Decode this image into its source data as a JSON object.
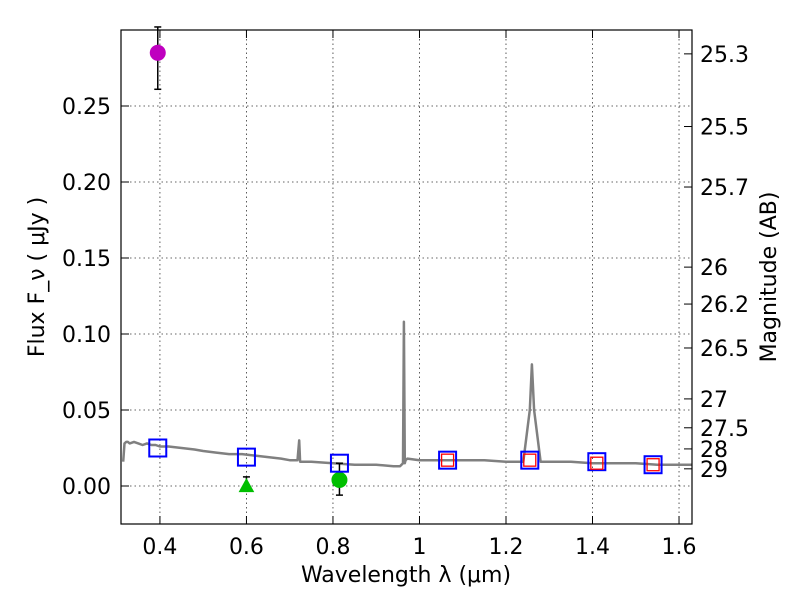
{
  "chart_data": {
    "type": "scatter",
    "xlabel": "Wavelength  λ (μm)",
    "ylabel_left": "Flux  F_ν  ( μJy )",
    "ylabel_right": "Magnitude (AB)",
    "xlim": [
      0.31,
      1.63
    ],
    "ylim": [
      -0.025,
      0.3
    ],
    "x_ticks": [
      {
        "value": 0.4,
        "label": "0.4"
      },
      {
        "value": 0.6,
        "label": "0.6"
      },
      {
        "value": 0.8,
        "label": "0.8"
      },
      {
        "value": 1.0,
        "label": "1"
      },
      {
        "value": 1.2,
        "label": "1.2"
      },
      {
        "value": 1.4,
        "label": "1.4"
      },
      {
        "value": 1.6,
        "label": "1.6"
      }
    ],
    "y_ticks": [
      {
        "value": 0.0,
        "label": "0.00"
      },
      {
        "value": 0.05,
        "label": "0.05"
      },
      {
        "value": 0.1,
        "label": "0.10"
      },
      {
        "value": 0.15,
        "label": "0.15"
      },
      {
        "value": 0.2,
        "label": "0.20"
      },
      {
        "value": 0.25,
        "label": "0.25"
      }
    ],
    "mag_ticks": [
      {
        "flux": 0.2843,
        "label": "25.3"
      },
      {
        "flux": 0.2365,
        "label": "25.5"
      },
      {
        "flux": 0.1967,
        "label": "25.7"
      },
      {
        "flux": 0.144,
        "label": "26"
      },
      {
        "flux": 0.1197,
        "label": "26.2"
      },
      {
        "flux": 0.0908,
        "label": "26.5"
      },
      {
        "flux": 0.0573,
        "label": "27"
      },
      {
        "flux": 0.0383,
        "label": "27.5"
      },
      {
        "flux": 0.0244,
        "label": "28"
      },
      {
        "flux": 0.0113,
        "label": "29"
      }
    ],
    "model_spectrum": {
      "name": "model SED",
      "color": "#808080",
      "x": [
        0.315,
        0.318,
        0.322,
        0.326,
        0.33,
        0.34,
        0.35,
        0.36,
        0.37,
        0.38,
        0.39,
        0.4,
        0.42,
        0.45,
        0.48,
        0.5,
        0.53,
        0.56,
        0.59,
        0.62,
        0.65,
        0.68,
        0.7,
        0.718,
        0.722,
        0.724,
        0.728,
        0.75,
        0.8,
        0.85,
        0.9,
        0.94,
        0.955,
        0.962,
        0.964,
        0.966,
        0.968,
        0.972,
        1.0,
        1.05,
        1.1,
        1.15,
        1.2,
        1.24,
        1.255,
        1.26,
        1.265,
        1.28,
        1.3,
        1.35,
        1.4,
        1.45,
        1.5,
        1.55,
        1.6,
        1.63
      ],
      "y": [
        0.016,
        0.028,
        0.029,
        0.029,
        0.028,
        0.029,
        0.028,
        0.027,
        0.028,
        0.027,
        0.027,
        0.026,
        0.026,
        0.025,
        0.024,
        0.023,
        0.022,
        0.021,
        0.021,
        0.02,
        0.019,
        0.018,
        0.017,
        0.017,
        0.03,
        0.016,
        0.016,
        0.016,
        0.015,
        0.014,
        0.014,
        0.013,
        0.013,
        0.015,
        0.108,
        0.015,
        0.017,
        0.018,
        0.017,
        0.017,
        0.017,
        0.017,
        0.016,
        0.016,
        0.05,
        0.08,
        0.05,
        0.016,
        0.016,
        0.016,
        0.015,
        0.015,
        0.015,
        0.014,
        0.014,
        0.014
      ]
    },
    "observed_points": [
      {
        "name": "magenta detection",
        "x": 0.395,
        "y": 0.285,
        "err_low": 0.261,
        "err_high": 0.302,
        "marker": "circle",
        "color": "#bf00bf"
      },
      {
        "name": "green detection",
        "x": 0.815,
        "y": 0.004,
        "err_low": -0.006,
        "err_high": 0.015,
        "marker": "circle",
        "color": "#00bf00"
      },
      {
        "name": "green upper limit",
        "x": 0.6,
        "y": 0.0,
        "err_low": -0.002,
        "err_high": 0.006,
        "marker": "triangle",
        "color": "#00bf00"
      }
    ],
    "model_photometry": [
      {
        "x": 0.395,
        "y": 0.025
      },
      {
        "x": 0.6,
        "y": 0.019
      },
      {
        "x": 0.815,
        "y": 0.015
      },
      {
        "x": 1.065,
        "y": 0.017
      },
      {
        "x": 1.255,
        "y": 0.017
      },
      {
        "x": 1.41,
        "y": 0.016
      },
      {
        "x": 1.54,
        "y": 0.014
      }
    ],
    "nir_measurements": [
      {
        "x": 1.065,
        "y": 0.017
      },
      {
        "x": 1.255,
        "y": 0.017
      },
      {
        "x": 1.41,
        "y": 0.015
      },
      {
        "x": 1.54,
        "y": 0.014
      }
    ],
    "colors": {
      "model_box": "#0000ff",
      "nir_box": "#ff0000",
      "error_bar": "#000000"
    }
  }
}
